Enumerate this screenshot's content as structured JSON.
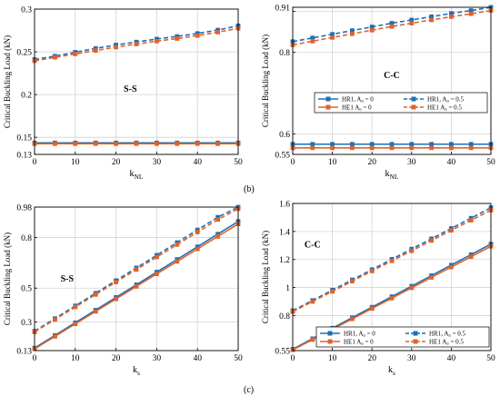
{
  "panel_labels": {
    "b": "(b)",
    "c": "(c)"
  },
  "legend_labels": {
    "hr1_a0": "HR1, A₀ = 0",
    "he1_a0": "HE1 A₀ = 0",
    "hr1_a05": "HR1, A₀ = 0.5",
    "he1_a05": "HE1 A₀ = 0.5"
  },
  "colors": {
    "hr1": "#1f6fb5",
    "he1": "#e0622a",
    "grid": "#d4d4d4",
    "axis": "#000000"
  },
  "chart_data": [
    {
      "id": "b-ss",
      "type": "line",
      "annotation": "S-S",
      "xlabel": "k_NL",
      "ylabel": "Critical Buckling Load (kN)",
      "xlim": [
        0,
        50
      ],
      "ylim": [
        0.13,
        0.3
      ],
      "xticks": [
        0,
        10,
        20,
        30,
        40,
        50
      ],
      "xtick_labels": [
        "0",
        "10",
        "20",
        "30",
        "40",
        "50"
      ],
      "yticks": [
        0.13,
        0.15,
        0.2,
        0.25,
        0.3
      ],
      "ytick_labels": [
        "0.13",
        "0.15",
        "0.2",
        "0.25",
        "0.3"
      ],
      "grid": true,
      "legend": false,
      "x": [
        0,
        5,
        10,
        15,
        20,
        25,
        30,
        35,
        40,
        45,
        50
      ],
      "series": [
        {
          "name": "HR1, A₀ = 0",
          "color": "#1f6fb5",
          "dashed": false,
          "values": [
            0.1435,
            0.1435,
            0.1435,
            0.1435,
            0.1435,
            0.1435,
            0.1435,
            0.1435,
            0.1435,
            0.1435,
            0.1435
          ]
        },
        {
          "name": "HE1 A₀ = 0",
          "color": "#e0622a",
          "dashed": false,
          "values": [
            0.1425,
            0.1425,
            0.1425,
            0.1425,
            0.1425,
            0.1425,
            0.1425,
            0.1425,
            0.1425,
            0.1425,
            0.1425
          ]
        },
        {
          "name": "HR1, A₀ = 0.5",
          "color": "#1f6fb5",
          "dashed": true,
          "values": [
            0.241,
            0.245,
            0.2495,
            0.254,
            0.258,
            0.2615,
            0.265,
            0.268,
            0.2715,
            0.2755,
            0.2805
          ]
        },
        {
          "name": "HE1 A₀ = 0.5",
          "color": "#e0622a",
          "dashed": true,
          "values": [
            0.2395,
            0.2435,
            0.2475,
            0.2515,
            0.2555,
            0.259,
            0.2625,
            0.2655,
            0.269,
            0.273,
            0.2775
          ]
        }
      ]
    },
    {
      "id": "b-cc",
      "type": "line",
      "annotation": "C-C",
      "xlabel": "k_NL",
      "ylabel": "Critical Buckling Load (kN)",
      "xlim": [
        0,
        50
      ],
      "ylim": [
        0.55,
        0.91
      ],
      "xticks": [
        0,
        10,
        20,
        30,
        40,
        50
      ],
      "xtick_labels": [
        "0",
        "10",
        "20",
        "30",
        "40",
        "50"
      ],
      "yticks": [
        0.55,
        0.6,
        0.8,
        0.9,
        0.91
      ],
      "ytick_labels": [
        "0.55",
        "0.6",
        "0.8",
        "",
        "0.91"
      ],
      "grid": true,
      "legend": true,
      "legend_position": "middle",
      "x": [
        0,
        5,
        10,
        15,
        20,
        25,
        30,
        35,
        40,
        45,
        50
      ],
      "series": [
        {
          "name": "HR1, A₀ = 0",
          "color": "#1f6fb5",
          "dashed": false,
          "values": [
            0.575,
            0.575,
            0.575,
            0.575,
            0.575,
            0.575,
            0.575,
            0.575,
            0.575,
            0.575,
            0.575
          ]
        },
        {
          "name": "HE1 A₀ = 0",
          "color": "#e0622a",
          "dashed": false,
          "values": [
            0.566,
            0.566,
            0.566,
            0.566,
            0.566,
            0.566,
            0.566,
            0.566,
            0.566,
            0.566,
            0.566
          ]
        },
        {
          "name": "HR1, A₀ = 0.5",
          "color": "#1f6fb5",
          "dashed": true,
          "values": [
            0.826,
            0.835,
            0.844,
            0.853,
            0.862,
            0.871,
            0.879,
            0.887,
            0.895,
            0.902,
            0.91
          ]
        },
        {
          "name": "HE1 A₀ = 0.5",
          "color": "#e0622a",
          "dashed": true,
          "values": [
            0.818,
            0.827,
            0.836,
            0.845,
            0.854,
            0.863,
            0.871,
            0.879,
            0.887,
            0.894,
            0.902
          ]
        }
      ]
    },
    {
      "id": "c-ss",
      "type": "line",
      "annotation": "S-S",
      "xlabel": "k_s",
      "ylabel": "Critical Buckling Load (kN)",
      "xlim": [
        0,
        50
      ],
      "ylim": [
        0.13,
        0.98
      ],
      "xticks": [
        0,
        10,
        20,
        30,
        40,
        50
      ],
      "xtick_labels": [
        "0",
        "10",
        "20",
        "30",
        "40",
        "50"
      ],
      "yticks": [
        0.13,
        0.3,
        0.5,
        0.8,
        0.98
      ],
      "ytick_labels": [
        "0.13",
        "0.3",
        "0.5",
        "0.8",
        "0.98"
      ],
      "grid": true,
      "legend": false,
      "x": [
        0,
        5,
        10,
        15,
        20,
        25,
        30,
        35,
        40,
        45,
        50
      ],
      "series": [
        {
          "name": "HR1, A₀ = 0",
          "color": "#1f6fb5",
          "dashed": false,
          "values": [
            0.145,
            0.22,
            0.295,
            0.37,
            0.445,
            0.52,
            0.595,
            0.67,
            0.745,
            0.82,
            0.895
          ]
        },
        {
          "name": "HE1 A₀ = 0",
          "color": "#e0622a",
          "dashed": false,
          "values": [
            0.14,
            0.214,
            0.288,
            0.362,
            0.436,
            0.51,
            0.584,
            0.658,
            0.732,
            0.806,
            0.88
          ]
        },
        {
          "name": "HR1, A₀ = 0.5",
          "color": "#1f6fb5",
          "dashed": true,
          "values": [
            0.245,
            0.32,
            0.395,
            0.47,
            0.545,
            0.62,
            0.695,
            0.77,
            0.845,
            0.92,
            0.98
          ]
        },
        {
          "name": "HE1 A₀ = 0.5",
          "color": "#e0622a",
          "dashed": true,
          "values": [
            0.24,
            0.314,
            0.388,
            0.462,
            0.536,
            0.61,
            0.684,
            0.758,
            0.832,
            0.906,
            0.97
          ]
        }
      ]
    },
    {
      "id": "c-cc",
      "type": "line",
      "annotation": "C-C",
      "xlabel": "k_s",
      "ylabel": "Critical Buckling Load (kN)",
      "xlim": [
        0,
        50
      ],
      "ylim": [
        0.55,
        1.6
      ],
      "xticks": [
        0,
        10,
        20,
        30,
        40,
        50
      ],
      "xtick_labels": [
        "0",
        "10",
        "20",
        "30",
        "40",
        "50"
      ],
      "yticks": [
        0.55,
        0.8,
        1.0,
        1.2,
        1.4,
        1.6
      ],
      "ytick_labels": [
        "0.55",
        "0.8",
        "1",
        "1.2",
        "1.4",
        "1.6"
      ],
      "grid": true,
      "legend": true,
      "legend_position": "bottom-right",
      "x": [
        0,
        5,
        10,
        15,
        20,
        25,
        30,
        35,
        40,
        45,
        50
      ],
      "series": [
        {
          "name": "HR1, A₀ = 0",
          "color": "#1f6fb5",
          "dashed": false,
          "values": [
            0.56,
            0.635,
            0.71,
            0.785,
            0.86,
            0.935,
            1.01,
            1.085,
            1.16,
            1.235,
            1.31
          ]
        },
        {
          "name": "HE1 A₀ = 0",
          "color": "#e0622a",
          "dashed": false,
          "values": [
            0.555,
            0.628,
            0.702,
            0.776,
            0.85,
            0.924,
            0.998,
            1.072,
            1.146,
            1.22,
            1.294
          ]
        },
        {
          "name": "HR1, A₀ = 0.5",
          "color": "#1f6fb5",
          "dashed": true,
          "values": [
            0.835,
            0.908,
            0.982,
            1.055,
            1.128,
            1.202,
            1.275,
            1.348,
            1.422,
            1.495,
            1.57
          ]
        },
        {
          "name": "HE1 A₀ = 0.5",
          "color": "#e0622a",
          "dashed": true,
          "values": [
            0.828,
            0.9,
            0.972,
            1.045,
            1.118,
            1.19,
            1.262,
            1.335,
            1.408,
            1.48,
            1.552
          ]
        }
      ]
    }
  ]
}
